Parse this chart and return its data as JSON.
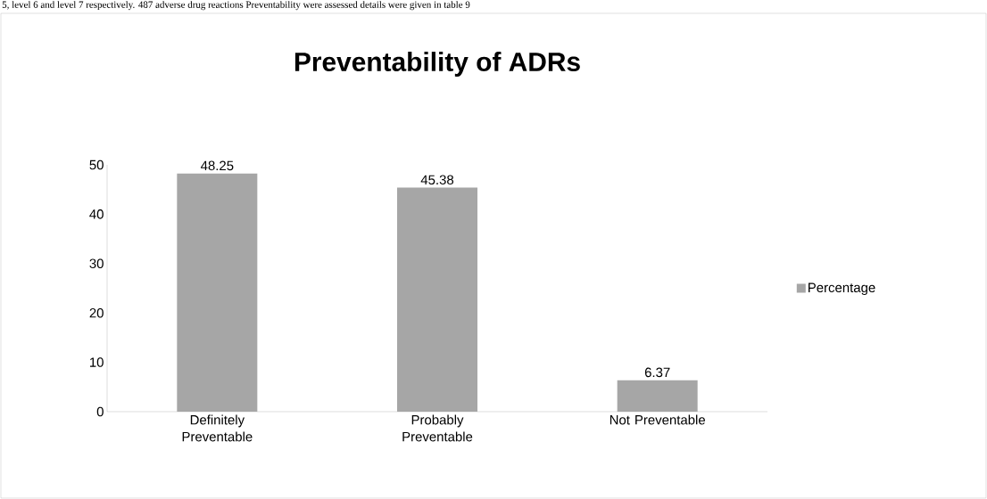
{
  "chart_data": {
    "type": "bar",
    "title": "Preventability of ADRs",
    "annotations": [
      "5, level 6 and level 7 respectively. 487 adverse drug reactions Preventability were assessed details were given in table 9"
    ],
    "categories": [
      "Definitely Preventable",
      "Probably Preventable",
      "Not Preventable"
    ],
    "series": [
      {
        "name": "Percentage",
        "color": "#a6a6a6",
        "values": [
          48.25,
          45.38,
          6.37
        ]
      }
    ],
    "ylim": [
      0,
      50
    ],
    "yticks": [
      0,
      10,
      20,
      30,
      40,
      50
    ],
    "data_labels": true,
    "legend": "right",
    "grid": false
  }
}
